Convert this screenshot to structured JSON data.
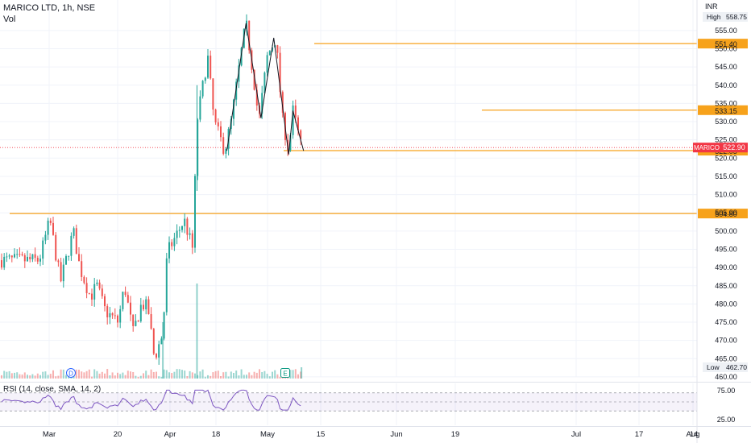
{
  "header": {
    "symbol_line": "MARICO LTD, 1h, NSE",
    "volume_label": "Vol",
    "currency": "INR"
  },
  "price_axis": {
    "ticks": [
      "555.00",
      "550.00",
      "545.00",
      "540.00",
      "535.00",
      "530.00",
      "525.00",
      "520.00",
      "515.00",
      "510.00",
      "505.00",
      "500.00",
      "495.00",
      "490.00",
      "485.00",
      "480.00",
      "475.00",
      "470.00",
      "465.00",
      "460.00"
    ],
    "high_label": "High",
    "high_value": "558.75",
    "low_label": "Low",
    "low_value": "462.70",
    "ticker_badge": "MARICO",
    "last_price": "522.90"
  },
  "levels": [
    {
      "label": "551.40",
      "value": 551.4
    },
    {
      "label": "533.15",
      "value": 533.15
    },
    {
      "label": "522.05",
      "value": 522.05
    },
    {
      "label": "504.80",
      "value": 504.8
    }
  ],
  "time_axis": {
    "labels": [
      "Mar",
      "20",
      "Apr",
      "18",
      "May",
      "15",
      "Jun",
      "19",
      "Jul",
      "17",
      "Aug",
      "14"
    ]
  },
  "event_markers": [
    {
      "letter": "D"
    },
    {
      "letter": "E"
    }
  ],
  "rsi": {
    "legend": "RSI (14, close, SMA, 14, 2)",
    "tick_upper": "75.00",
    "tick_lower": "25.00"
  },
  "colors": {
    "up": "#26a69a",
    "down": "#ef5350",
    "level_line": "#f7a21b",
    "pattern_line": "#131722",
    "rsi_line": "#7e57c2",
    "price_badge": "#f23645"
  },
  "chart_data": {
    "type": "candlestick",
    "title": "MARICO LTD, 1h, NSE",
    "ylim": [
      460,
      558.75
    ],
    "price_path": [
      {
        "x": "Feb 24",
        "y": 492
      },
      {
        "x": "Feb 29",
        "y": 503
      },
      {
        "x": "Mar 05",
        "y": 486
      },
      {
        "x": "Mar 11",
        "y": 500
      },
      {
        "x": "Mar 14",
        "y": 490
      },
      {
        "x": "Mar 19",
        "y": 482
      },
      {
        "x": "Mar 22",
        "y": 485
      },
      {
        "x": "Mar 26",
        "y": 478
      },
      {
        "x": "Apr 01",
        "y": 475
      },
      {
        "x": "Apr 04",
        "y": 485
      },
      {
        "x": "Apr 08",
        "y": 472
      },
      {
        "x": "Apr 12",
        "y": 480
      },
      {
        "x": "Apr 15",
        "y": 479
      },
      {
        "x": "Apr 18",
        "y": 465
      },
      {
        "x": "Apr 22",
        "y": 472
      },
      {
        "x": "Apr 24",
        "y": 494
      },
      {
        "x": "May 02",
        "y": 503
      },
      {
        "x": "May 06",
        "y": 495
      },
      {
        "x": "May 08",
        "y": 530
      },
      {
        "x": "May 13",
        "y": 548
      },
      {
        "x": "May 16",
        "y": 530
      },
      {
        "x": "May 21",
        "y": 522
      },
      {
        "x": "May 24",
        "y": 530
      },
      {
        "x": "May 29",
        "y": 550
      },
      {
        "x": "May 31",
        "y": 557
      },
      {
        "x": "Jun 04",
        "y": 540
      },
      {
        "x": "Jun 06",
        "y": 530
      },
      {
        "x": "Jun 10",
        "y": 548
      },
      {
        "x": "Jun 14",
        "y": 553
      },
      {
        "x": "Jun 17",
        "y": 531
      },
      {
        "x": "Jun 20",
        "y": 522
      },
      {
        "x": "Jun 22",
        "y": 533
      },
      {
        "x": "Jun 26",
        "y": 522.9
      }
    ],
    "horizontal_levels": [
      551.4,
      533.15,
      522.05,
      504.8
    ],
    "last_price": 522.9,
    "high": 558.75,
    "low": 462.7,
    "rsi": {
      "bands": [
        30,
        70
      ],
      "ylim": [
        25,
        80
      ]
    }
  }
}
